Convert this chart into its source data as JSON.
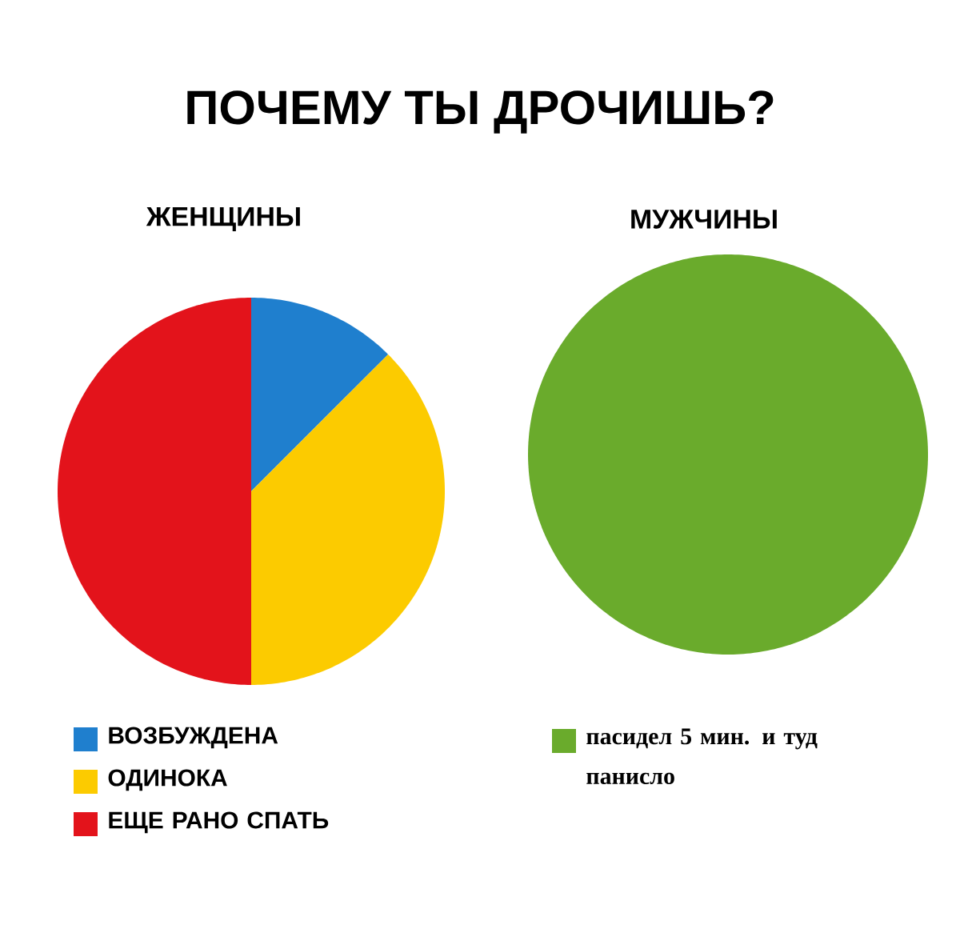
{
  "chart_data": [
    {
      "type": "pie",
      "title": "ПОЧЕМУ ТЫ ДРОЧИШЬ?",
      "subtitle": "ЖЕНЩИНЫ",
      "categories": [
        "ВОЗБУЖДЕНА",
        "ОДИНОКА",
        "ЕЩЕ РАНО СПАТЬ"
      ],
      "values": [
        12.5,
        37.5,
        50
      ],
      "colors": [
        "#1f7fce",
        "#fccb00",
        "#e3131b"
      ],
      "legend": "bottom"
    },
    {
      "type": "pie",
      "subtitle": "МУЖЧИНЫ",
      "categories": [
        "пасидел 5 мин. и туд панисло"
      ],
      "values": [
        100
      ],
      "colors": [
        "#6aab2c"
      ],
      "legend": "bottom"
    }
  ]
}
